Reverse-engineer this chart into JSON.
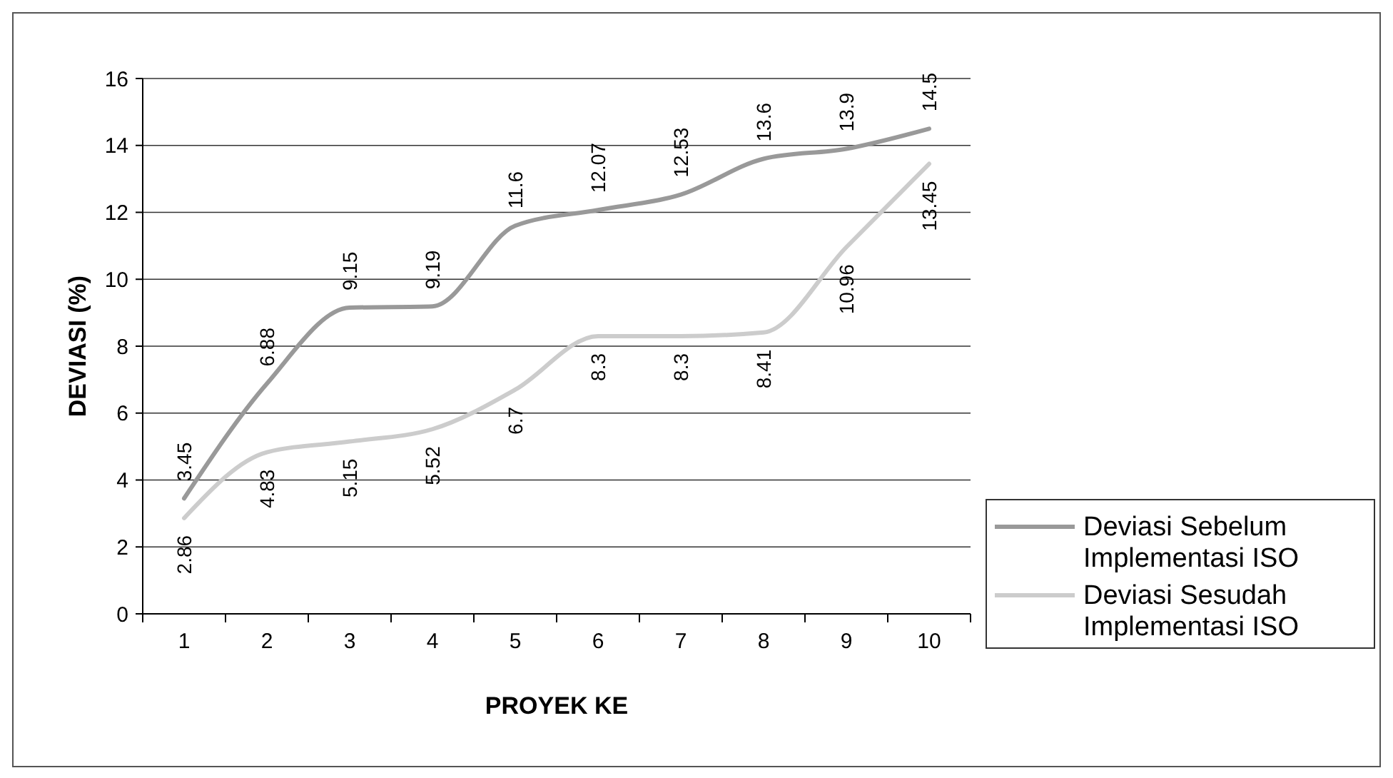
{
  "chart_data": {
    "type": "line",
    "xlabel": "PROYEK KE",
    "ylabel": "DEVIASI (%)",
    "categories": [
      "1",
      "2",
      "3",
      "4",
      "5",
      "6",
      "7",
      "8",
      "9",
      "10"
    ],
    "series": [
      {
        "name": "Deviasi Sebelum Implementasi ISO",
        "color": "#999999",
        "values": [
          3.45,
          6.88,
          9.15,
          9.19,
          11.6,
          12.07,
          12.53,
          13.6,
          13.9,
          14.5
        ]
      },
      {
        "name": "Deviasi Sesudah Implementasi ISO",
        "color": "#cccccc",
        "values": [
          2.86,
          4.83,
          5.15,
          5.52,
          6.7,
          8.3,
          8.3,
          8.41,
          10.96,
          13.45
        ]
      }
    ],
    "ylim": [
      0,
      16
    ],
    "yticks": [
      0,
      2,
      4,
      6,
      8,
      10,
      12,
      14,
      16
    ],
    "grid": "y",
    "legend": "right",
    "data_labels": true,
    "marker": "none",
    "line_style": "solid"
  }
}
